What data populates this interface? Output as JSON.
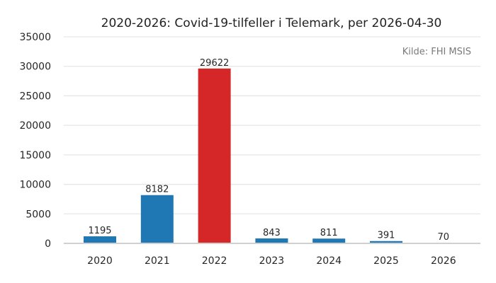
{
  "chart_data": {
    "type": "bar",
    "title": "2020-2026: Covid-19-tilfeller i Telemark, per 2026-04-30",
    "source": "Kilde: FHI MSIS",
    "categories": [
      "2020",
      "2021",
      "2022",
      "2023",
      "2024",
      "2025",
      "2026"
    ],
    "values": [
      1195,
      8182,
      29622,
      843,
      811,
      391,
      70
    ],
    "data_labels": [
      "1195",
      "8182",
      "29622",
      "843",
      "811",
      "391",
      "70"
    ],
    "bar_colors": [
      "#1f77b4",
      "#1f77b4",
      "#d62728",
      "#1f77b4",
      "#1f77b4",
      "#1f77b4",
      "#1f77b4"
    ],
    "xlabel": "",
    "ylabel": "",
    "ylim": [
      0,
      35000
    ],
    "yticks": [
      0,
      5000,
      10000,
      15000,
      20000,
      25000,
      30000,
      35000
    ],
    "ytick_labels": [
      "0",
      "5000",
      "10000",
      "15000",
      "20000",
      "25000",
      "30000",
      "35000"
    ],
    "grid": true,
    "legend": false
  }
}
